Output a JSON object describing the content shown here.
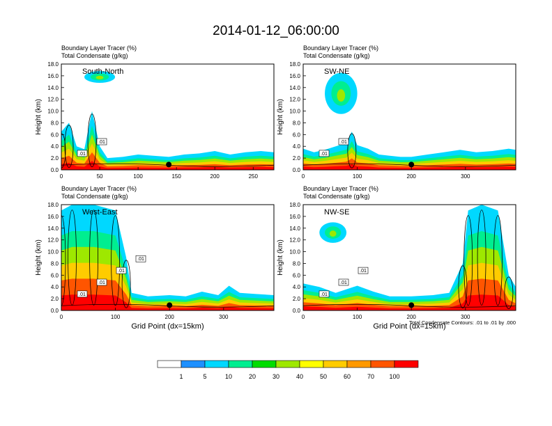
{
  "title": "2014-01-12_06:00:00",
  "palette": [
    "#ffffff",
    "#1e90ff",
    "#00d8ff",
    "#00ee90",
    "#00dd00",
    "#9ee800",
    "#ffff00",
    "#ffcc00",
    "#ff9900",
    "#ff5500",
    "#ff0000"
  ],
  "chart_data": {
    "type": "heatmap",
    "colorbar": {
      "levels": [
        "1",
        "5",
        "10",
        "20",
        "30",
        "40",
        "50",
        "60",
        "70",
        "100"
      ]
    },
    "panels": [
      {
        "id": "south-north",
        "label": "South-North",
        "field_title_1": "Boundary Layer Tracer   (%)",
        "field_title_2": "Total Condensate   (g/kg)",
        "ylabel": "Height (km)",
        "xlabel": "",
        "x_ticks": [
          "0",
          "50",
          "100",
          "150",
          "200",
          "250"
        ],
        "y_ticks": [
          "0.0",
          "2.0",
          "4.0",
          "6.0",
          "8.0",
          "10.0",
          "12.0",
          "14.0",
          "16.0",
          "18.0"
        ],
        "xlim": [
          0,
          277
        ],
        "ylim": [
          0,
          18
        ],
        "marker_x": 140,
        "contour_labels": [
          ".01",
          ".01"
        ],
        "pbl_tracer_top_km": [
          {
            "x": 0,
            "h": 6.5
          },
          {
            "x": 10,
            "h": 8
          },
          {
            "x": 20,
            "h": 4
          },
          {
            "x": 30,
            "h": 3.5
          },
          {
            "x": 40,
            "h": 10
          },
          {
            "x": 50,
            "h": 4
          },
          {
            "x": 60,
            "h": 2
          },
          {
            "x": 80,
            "h": 2.2
          },
          {
            "x": 100,
            "h": 2.6
          },
          {
            "x": 120,
            "h": 2.4
          },
          {
            "x": 140,
            "h": 2.2
          },
          {
            "x": 160,
            "h": 2.6
          },
          {
            "x": 180,
            "h": 2.8
          },
          {
            "x": 200,
            "h": 3.2
          },
          {
            "x": 220,
            "h": 2.6
          },
          {
            "x": 240,
            "h": 3
          },
          {
            "x": 260,
            "h": 3.2
          },
          {
            "x": 277,
            "h": 3
          }
        ],
        "upper_cloud": {
          "x0": 30,
          "x1": 70,
          "bottom_km": 14.8,
          "top_km": 16.8
        }
      },
      {
        "id": "sw-ne",
        "label": "SW-NE",
        "field_title_1": "Boundary Layer Tracer   (%)",
        "field_title_2": "Total Condensate   (g/kg)",
        "ylabel": "Height (km)",
        "xlabel": "",
        "x_ticks": [
          "0",
          "100",
          "200",
          "300"
        ],
        "y_ticks": [
          "0.0",
          "2.0",
          "4.0",
          "6.0",
          "8.0",
          "10.0",
          "12.0",
          "14.0",
          "16.0",
          "18.0"
        ],
        "xlim": [
          0,
          393
        ],
        "ylim": [
          0,
          18
        ],
        "marker_x": 200,
        "contour_labels": [
          ".01",
          ".01"
        ],
        "pbl_tracer_top_km": [
          {
            "x": 0,
            "h": 3.6
          },
          {
            "x": 20,
            "h": 3
          },
          {
            "x": 40,
            "h": 3.4
          },
          {
            "x": 60,
            "h": 4
          },
          {
            "x": 80,
            "h": 4.6
          },
          {
            "x": 90,
            "h": 6.5
          },
          {
            "x": 100,
            "h": 4.2
          },
          {
            "x": 120,
            "h": 3.6
          },
          {
            "x": 140,
            "h": 2.6
          },
          {
            "x": 160,
            "h": 2.4
          },
          {
            "x": 180,
            "h": 2.2
          },
          {
            "x": 200,
            "h": 2.2
          },
          {
            "x": 230,
            "h": 2.6
          },
          {
            "x": 260,
            "h": 3
          },
          {
            "x": 290,
            "h": 3.4
          },
          {
            "x": 320,
            "h": 3
          },
          {
            "x": 350,
            "h": 3.2
          },
          {
            "x": 380,
            "h": 3.6
          },
          {
            "x": 393,
            "h": 3.4
          }
        ],
        "upper_cloud": {
          "x0": 40,
          "x1": 100,
          "bottom_km": 9.5,
          "top_km": 16.5
        }
      },
      {
        "id": "west-east",
        "label": "West-East",
        "field_title_1": "Boundary Layer Tracer   (%)",
        "field_title_2": "Total Condensate   (g/kg)",
        "ylabel": "Height (km)",
        "xlabel": "Grid Point (dx=15km)",
        "x_ticks": [
          "0",
          "100",
          "200",
          "300"
        ],
        "y_ticks": [
          "0.0",
          "2.0",
          "4.0",
          "6.0",
          "8.0",
          "10.0",
          "12.0",
          "14.0",
          "16.0",
          "18.0"
        ],
        "xlim": [
          0,
          393
        ],
        "ylim": [
          0,
          18
        ],
        "marker_x": 200,
        "contour_labels": [
          ".01",
          ".01",
          ".01",
          ".01"
        ],
        "pbl_tracer_top_km": [
          {
            "x": 0,
            "h": 17
          },
          {
            "x": 20,
            "h": 18
          },
          {
            "x": 60,
            "h": 18
          },
          {
            "x": 100,
            "h": 17
          },
          {
            "x": 120,
            "h": 9
          },
          {
            "x": 130,
            "h": 3
          },
          {
            "x": 160,
            "h": 2.4
          },
          {
            "x": 200,
            "h": 2.6
          },
          {
            "x": 230,
            "h": 2.4
          },
          {
            "x": 260,
            "h": 3.2
          },
          {
            "x": 290,
            "h": 2.6
          },
          {
            "x": 310,
            "h": 4.2
          },
          {
            "x": 330,
            "h": 3
          },
          {
            "x": 360,
            "h": 2.8
          },
          {
            "x": 393,
            "h": 2.6
          }
        ],
        "upper_cloud": null
      },
      {
        "id": "nw-se",
        "label": "NW-SE",
        "field_title_1": "Boundary Layer Tracer   (%)",
        "field_title_2": "Total Condensate   (g/kg)",
        "ylabel": "Height (km)",
        "xlabel": "Grid Point (dx=15km)",
        "x_ticks": [
          "0",
          "100",
          "200",
          "300"
        ],
        "y_ticks": [
          "0.0",
          "2.0",
          "4.0",
          "6.0",
          "8.0",
          "10.0",
          "12.0",
          "14.0",
          "16.0",
          "18.0"
        ],
        "xlim": [
          0,
          393
        ],
        "ylim": [
          0,
          18
        ],
        "marker_x": 200,
        "contour_labels": [
          ".01",
          ".01",
          ".01"
        ],
        "contour_note": "Total Condensate Contours: .01 to .01 by .000",
        "pbl_tracer_top_km": [
          {
            "x": 0,
            "h": 4.6
          },
          {
            "x": 30,
            "h": 4
          },
          {
            "x": 60,
            "h": 3
          },
          {
            "x": 100,
            "h": 4.2
          },
          {
            "x": 130,
            "h": 3.2
          },
          {
            "x": 160,
            "h": 2.4
          },
          {
            "x": 200,
            "h": 2.4
          },
          {
            "x": 240,
            "h": 2.6
          },
          {
            "x": 270,
            "h": 3
          },
          {
            "x": 295,
            "h": 8
          },
          {
            "x": 305,
            "h": 17
          },
          {
            "x": 330,
            "h": 18
          },
          {
            "x": 360,
            "h": 17
          },
          {
            "x": 380,
            "h": 6
          },
          {
            "x": 393,
            "h": 4
          }
        ],
        "upper_cloud": {
          "x0": 30,
          "x1": 80,
          "bottom_km": 11.5,
          "top_km": 15
        }
      }
    ]
  }
}
